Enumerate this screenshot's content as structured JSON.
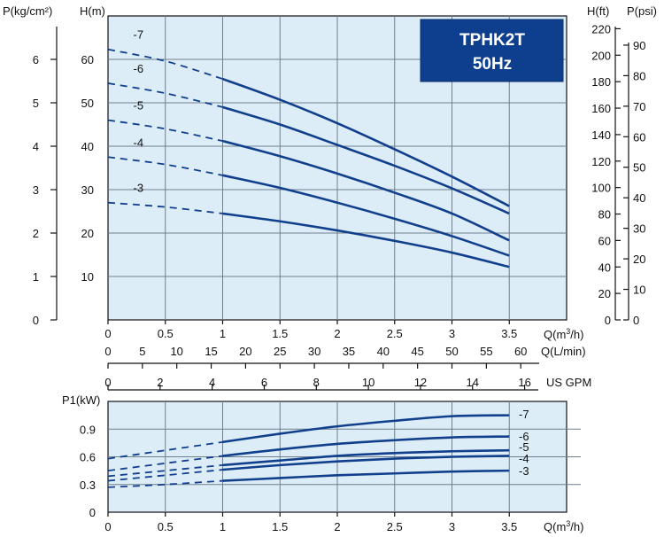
{
  "title": {
    "model": "TPHK2T",
    "frequency": "50Hz"
  },
  "colors": {
    "plot_background": "#dcedf8",
    "curve": "#123f8c",
    "title_box": "#0d3f8e"
  },
  "chart_data": [
    {
      "type": "line",
      "name": "Head curves",
      "ylabel_left_pressure": "P(kg/cm²)",
      "ylabel_left_head": "H(m)",
      "ylabel_right_head": "H(ft)",
      "ylabel_right_pressure": "P(psi)",
      "xlabel": "Q(m³/h)",
      "xlabel_secondary": "Q(L/min)",
      "xlabel_tertiary": "US GPM",
      "xlim": [
        0,
        4
      ],
      "ylim": [
        0,
        70
      ],
      "grid": true,
      "x_ticks": [
        "0",
        "0.5",
        "1",
        "1.5",
        "2",
        "2.5",
        "3",
        "3.5"
      ],
      "x_tick_values": [
        0,
        0.5,
        1,
        1.5,
        2,
        2.5,
        3,
        3.5
      ],
      "lmin_ticks": [
        "0",
        "5",
        "10",
        "15",
        "20",
        "25",
        "30",
        "35",
        "40",
        "45",
        "50",
        "55",
        "60"
      ],
      "lmin_tick_values": [
        0,
        5,
        10,
        15,
        20,
        25,
        30,
        35,
        40,
        45,
        50,
        55,
        60
      ],
      "gpm_ticks": [
        "0",
        "2",
        "4",
        "6",
        "8",
        "10",
        "12",
        "14",
        "16"
      ],
      "gpm_tick_values": [
        0,
        2,
        4,
        6,
        8,
        10,
        12,
        14,
        16
      ],
      "h_m_ticks": [
        "10",
        "20",
        "30",
        "40",
        "50",
        "60"
      ],
      "h_m_tick_values": [
        10,
        20,
        30,
        40,
        50,
        60
      ],
      "p_kg_ticks": [
        "0",
        "1",
        "2",
        "3",
        "4",
        "5",
        "6"
      ],
      "p_kg_tick_values": [
        0,
        1,
        2,
        3,
        4,
        5,
        6
      ],
      "h_ft_ticks": [
        "0",
        "20",
        "40",
        "60",
        "80",
        "100",
        "120",
        "140",
        "160",
        "180",
        "200",
        "220"
      ],
      "h_ft_tick_values": [
        0,
        20,
        40,
        60,
        80,
        100,
        120,
        140,
        160,
        180,
        200,
        220
      ],
      "p_psi_ticks": [
        "0",
        "10",
        "20",
        "30",
        "40",
        "50",
        "60",
        "70",
        "80",
        "90"
      ],
      "p_psi_tick_values": [
        0,
        10,
        20,
        30,
        40,
        50,
        60,
        70,
        80,
        90
      ],
      "x": [
        0,
        0.5,
        1,
        1.5,
        2,
        2.5,
        3,
        3.5
      ],
      "dashed_until_x": 1,
      "series": [
        {
          "name": "-7",
          "values": [
            62.3,
            59.6,
            55.5,
            50.7,
            45.3,
            39.3,
            33.0,
            26.2
          ]
        },
        {
          "name": "-6",
          "values": [
            54.5,
            52.2,
            49.0,
            45.0,
            40.3,
            35.5,
            30.3,
            24.5
          ]
        },
        {
          "name": "-5",
          "values": [
            46.0,
            44.0,
            41.2,
            37.7,
            33.7,
            29.3,
            24.5,
            18.3
          ]
        },
        {
          "name": "-4",
          "values": [
            37.5,
            35.8,
            33.3,
            30.4,
            27.0,
            23.3,
            19.3,
            14.8
          ]
        },
        {
          "name": "-3",
          "values": [
            27.0,
            26.0,
            24.5,
            22.7,
            20.6,
            18.2,
            15.5,
            12.2
          ]
        }
      ]
    },
    {
      "type": "line",
      "name": "Power curves",
      "ylabel": "P1(kW)",
      "xlabel": "Q(m³/h)",
      "xlim": [
        0,
        4
      ],
      "ylim": [
        0,
        1.2
      ],
      "grid": true,
      "x_ticks": [
        "0",
        "0.5",
        "1",
        "1.5",
        "2",
        "2.5",
        "3",
        "3.5"
      ],
      "x_tick_values": [
        0,
        0.5,
        1,
        1.5,
        2,
        2.5,
        3,
        3.5
      ],
      "y_ticks": [
        "0",
        "0.3",
        "0.6",
        "0.9"
      ],
      "y_tick_values": [
        0,
        0.3,
        0.6,
        0.9
      ],
      "x": [
        0,
        0.5,
        1,
        1.5,
        2,
        2.5,
        3,
        3.5
      ],
      "dashed_until_x": 1,
      "series": [
        {
          "name": "-7",
          "values": [
            0.58,
            0.67,
            0.76,
            0.85,
            0.93,
            0.99,
            1.04,
            1.05
          ]
        },
        {
          "name": "-6",
          "values": [
            0.45,
            0.53,
            0.61,
            0.68,
            0.74,
            0.78,
            0.81,
            0.82
          ]
        },
        {
          "name": "-5",
          "values": [
            0.39,
            0.45,
            0.51,
            0.56,
            0.61,
            0.64,
            0.66,
            0.67
          ]
        },
        {
          "name": "-4",
          "values": [
            0.34,
            0.4,
            0.46,
            0.51,
            0.55,
            0.58,
            0.6,
            0.61
          ]
        },
        {
          "name": "-3",
          "values": [
            0.27,
            0.3,
            0.34,
            0.37,
            0.4,
            0.42,
            0.44,
            0.45
          ]
        }
      ]
    }
  ]
}
